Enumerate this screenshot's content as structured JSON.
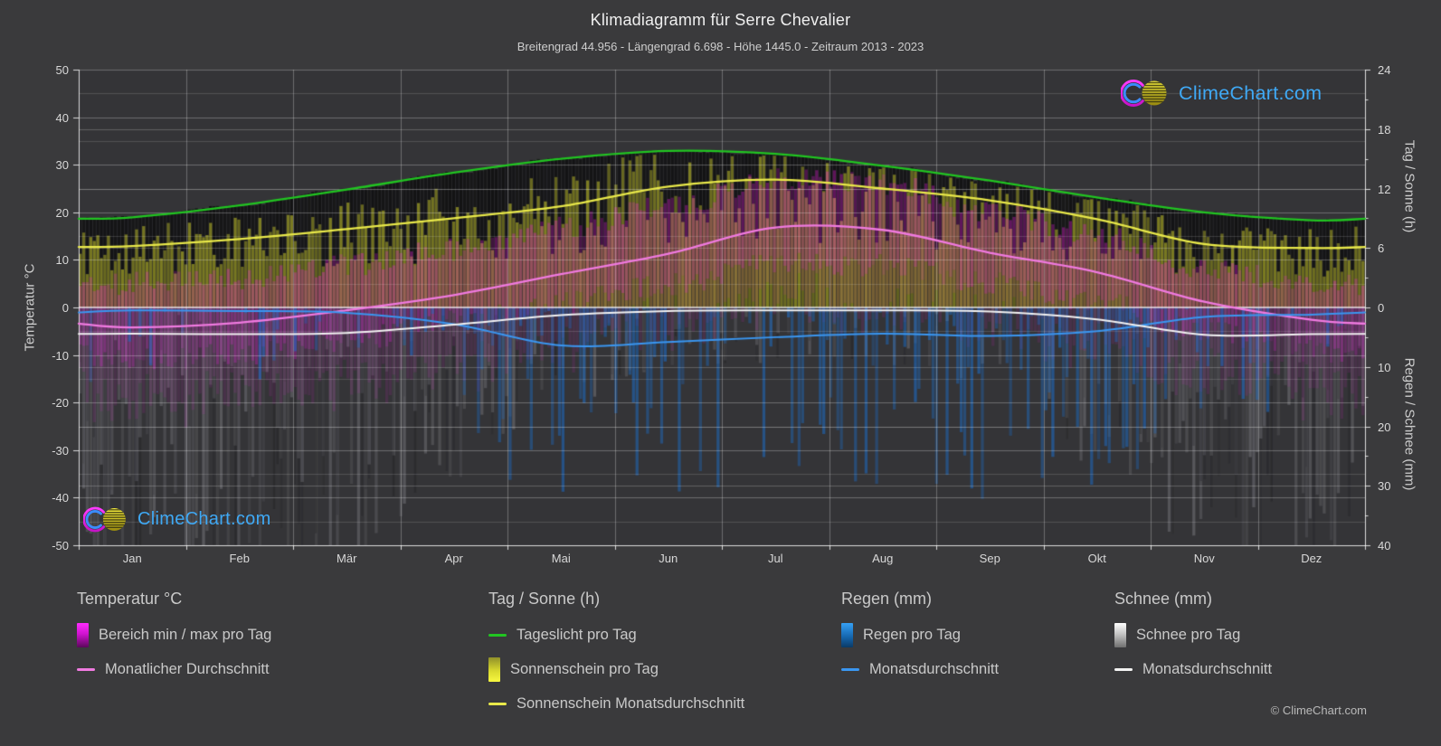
{
  "header": {
    "title": "Klimadiagramm für Serre Chevalier",
    "subtitle": "Breitengrad 44.956 - Längengrad 6.698 - Höhe 1445.0 - Zeitraum 2013 - 2023"
  },
  "watermark": {
    "text": "ClimeChart.com"
  },
  "footer": {
    "copyright": "© ClimeChart.com"
  },
  "axes": {
    "left_label": "Temperatur °C",
    "left_ticks": [
      50,
      40,
      30,
      20,
      10,
      0,
      -10,
      -20,
      -30,
      -40,
      -50
    ],
    "right_top_label": "Tag / Sonne (h)",
    "right_top_ticks": [
      24,
      18,
      12,
      6,
      0
    ],
    "right_bottom_label": "Regen / Schnee (mm)",
    "right_bottom_ticks": [
      10,
      20,
      30,
      40
    ],
    "months": [
      "Jan",
      "Feb",
      "Mär",
      "Apr",
      "Mai",
      "Jun",
      "Jul",
      "Aug",
      "Sep",
      "Okt",
      "Nov",
      "Dez"
    ]
  },
  "legend": {
    "groups": [
      {
        "title": "Temperatur °C",
        "items": [
          {
            "swatch": "grad-magenta",
            "label": "Bereich min / max pro Tag"
          },
          {
            "swatch": "line-magenta",
            "label": "Monatlicher Durchschnitt"
          }
        ]
      },
      {
        "title": "Tag / Sonne (h)",
        "items": [
          {
            "swatch": "line-green",
            "label": "Tageslicht pro Tag"
          },
          {
            "swatch": "grad-yellow",
            "label": "Sonnenschein pro Tag"
          },
          {
            "swatch": "line-yellow",
            "label": "Sonnenschein Monatsdurchschnitt"
          }
        ]
      },
      {
        "title": "Regen (mm)",
        "items": [
          {
            "swatch": "grad-blue",
            "label": "Regen pro Tag"
          },
          {
            "swatch": "line-blue",
            "label": "Monatsdurchschnitt"
          }
        ]
      },
      {
        "title": "Schnee (mm)",
        "items": [
          {
            "swatch": "grad-white",
            "label": "Schnee pro Tag"
          },
          {
            "swatch": "line-white",
            "label": "Monatsdurchschnitt"
          }
        ]
      }
    ]
  },
  "chart_data": {
    "type": "climate-composite",
    "title": "Klimadiagramm für Serre Chevalier",
    "months": [
      "Jan",
      "Feb",
      "Mär",
      "Apr",
      "Mai",
      "Jun",
      "Jul",
      "Aug",
      "Sep",
      "Okt",
      "Nov",
      "Dez"
    ],
    "axis_ranges": {
      "temperature_c": [
        -50,
        50
      ],
      "sun_hours": [
        0,
        24
      ],
      "precip_mm": [
        0,
        40
      ]
    },
    "series": {
      "daylight_hours_per_day": [
        9.1,
        10.3,
        11.9,
        13.6,
        15.0,
        15.8,
        15.5,
        14.3,
        12.8,
        11.1,
        9.6,
        8.8
      ],
      "sunshine_hours_monthly_mean": [
        6.2,
        6.9,
        7.9,
        9.0,
        10.2,
        12.2,
        12.9,
        12.0,
        10.8,
        8.9,
        6.4,
        6.0
      ],
      "temp_monthly_mean_c": [
        -4.2,
        -3.2,
        -0.6,
        2.6,
        7.0,
        11.3,
        16.8,
        16.3,
        11.5,
        7.4,
        1.2,
        -2.6
      ],
      "temp_daily_max_mean_c": [
        5,
        6,
        9,
        12,
        17,
        21,
        27,
        26,
        20,
        15,
        8,
        5
      ],
      "temp_daily_min_mean_c": [
        -11,
        -10,
        -7,
        -3,
        1,
        5,
        9,
        9,
        5,
        1,
        -5,
        -9
      ],
      "rain_mm_monthly_mean": [
        0.5,
        0.6,
        0.9,
        2.8,
        6.4,
        5.8,
        5.0,
        4.4,
        4.8,
        4.0,
        1.6,
        1.2
      ],
      "snow_mm_monthly_mean": [
        4.4,
        4.5,
        4.3,
        2.9,
        1.3,
        0.6,
        0.5,
        0.5,
        0.7,
        2.0,
        4.6,
        4.5
      ],
      "rain_day_intensity_factor": [
        0.12,
        0.12,
        0.2,
        0.55,
        1.0,
        0.85,
        0.75,
        0.75,
        0.85,
        0.75,
        0.45,
        0.25
      ],
      "snow_day_intensity_factor": [
        1.0,
        1.0,
        0.85,
        0.55,
        0.2,
        0.07,
        0.05,
        0.05,
        0.12,
        0.45,
        0.85,
        1.0
      ]
    },
    "colors": {
      "background": "#3a3a3c",
      "plot_background": "#343437",
      "grid": "rgba(255,255,255,0.28)",
      "grid_minor": "rgba(255,255,255,0.15)",
      "zero_line": "rgba(255,255,255,0.85)",
      "frame": "rgba(255,255,255,0.75)",
      "daylight_line": "#21c521",
      "sunshine_line": "#e9e94a",
      "temp_line": "#f07ae0",
      "rain_line": "#3a96f0",
      "snow_line": "#f2f2f2",
      "daylight_bar": "rgba(16,16,17,0.85)",
      "sunshine_bar": "rgba(234,234,48,0.42)",
      "temp_bar": "rgba(252,28,236,0.26)",
      "rain_bar": "rgba(28,108,198,0.45)",
      "snow_bar": "rgba(238,238,248,0.12)",
      "logo_text": "#3fa9f5"
    },
    "legend_position": "bottom",
    "grid_on": true
  }
}
